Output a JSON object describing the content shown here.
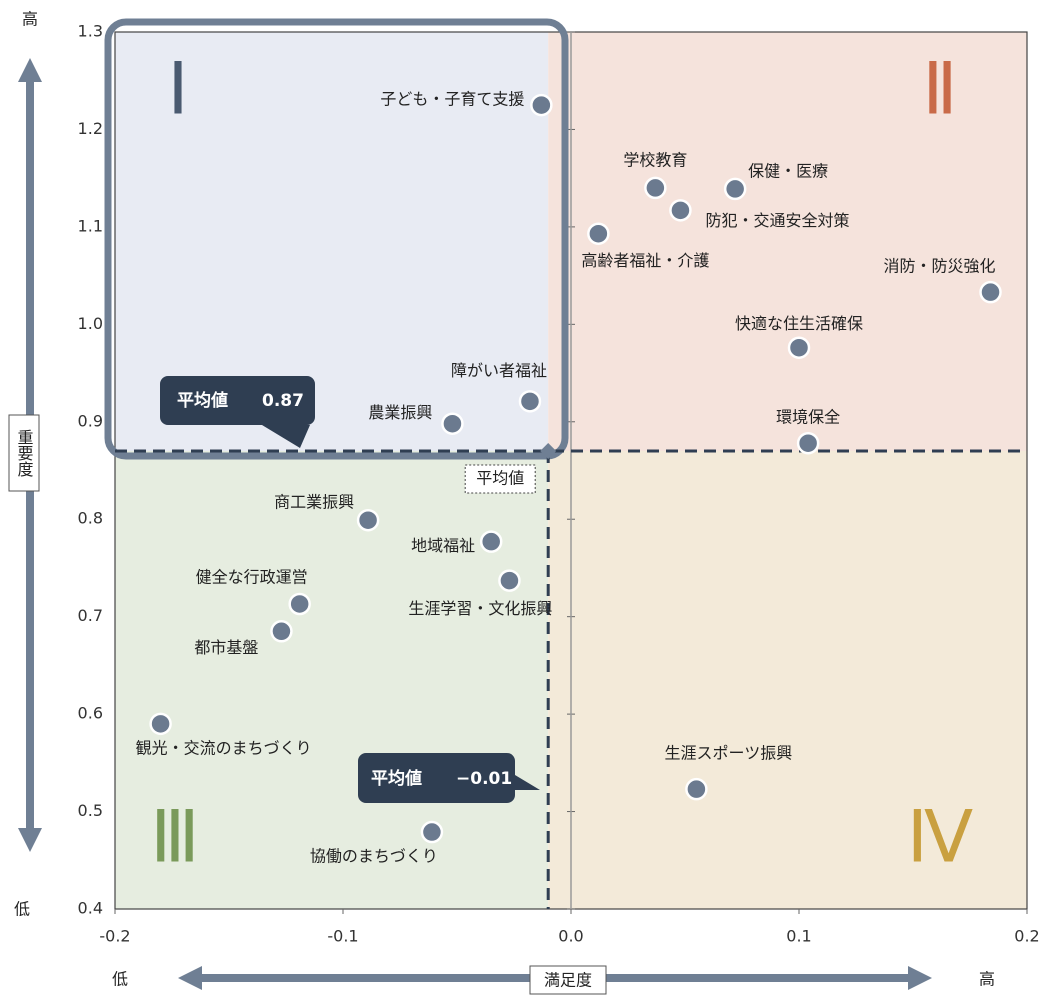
{
  "chart_data": {
    "type": "scatter",
    "xlabel": "満足度",
    "ylabel": "重要度",
    "x_low": "低",
    "x_high": "高",
    "y_low": "低",
    "y_high": "高",
    "quadrants": [
      "Ⅰ",
      "Ⅱ",
      "Ⅲ",
      "Ⅳ"
    ],
    "mean_caption": "平均値",
    "mean_x": {
      "value": -0.01,
      "label": "−0.01"
    },
    "mean_y": {
      "value": 0.87,
      "label": "0.87"
    },
    "xlim": [
      -0.2,
      0.2
    ],
    "ylim": [
      0.4,
      1.3
    ],
    "xticks": [
      -0.2,
      -0.1,
      {
        "value": 0,
        "label": "0.0"
      },
      0.1,
      0.2
    ],
    "yticks": [
      0.4,
      0.5,
      0.6,
      0.7,
      0.8,
      0.9,
      {
        "value": 1,
        "label": "1.0"
      },
      1.1,
      1.2,
      1.3
    ],
    "color": "#6b7a8f",
    "labels": [
      "子ども・子育て支援",
      "学校教育",
      "保健・医療",
      "防犯・交通安全対策",
      "高齢者福祉・介護",
      "消防・防災強化",
      "快適な住生活確保",
      "環境保全",
      "障がい者福祉",
      "農業振興",
      "商工業振興",
      "地域福祉",
      "生涯学習・文化振興",
      "健全な行政運営",
      "都市基盤",
      "観光・交流のまちづくり",
      "生涯スポーツ振興",
      "協働のまちづくり"
    ],
    "x": [
      -0.013,
      0.037,
      0.072,
      0.048,
      0.012,
      0.184,
      0.1,
      0.104,
      -0.018,
      -0.052,
      -0.089,
      -0.035,
      -0.027,
      -0.119,
      -0.127,
      -0.18,
      0.055,
      -0.061
    ],
    "values": [
      1.225,
      1.14,
      1.139,
      1.117,
      1.093,
      1.033,
      0.976,
      0.878,
      0.921,
      0.898,
      0.799,
      0.777,
      0.737,
      0.713,
      0.685,
      0.59,
      0.523,
      0.479
    ]
  }
}
